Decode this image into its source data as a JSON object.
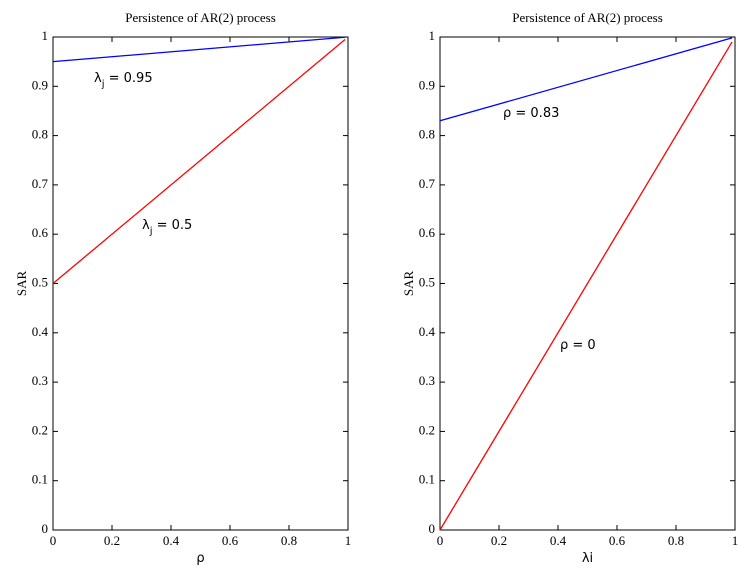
{
  "chart_data": [
    {
      "type": "line",
      "title": "Persistence of AR(2) process",
      "xlabel": [
        "ρ"
      ],
      "ylabel": "SAR",
      "x": [
        0,
        0.99
      ],
      "series": [
        {
          "color": "#0000ff",
          "values": [
            0.95,
            0.9995
          ]
        },
        {
          "color": "#ff0000",
          "values": [
            0.5,
            0.995
          ]
        }
      ],
      "xlim": [
        0,
        1
      ],
      "ylim": [
        0,
        1
      ],
      "xticks": [
        0,
        0.2,
        0.4,
        0.6,
        0.8,
        1
      ],
      "yticks": [
        0,
        0.1,
        0.2,
        0.3,
        0.4,
        0.5,
        0.6,
        0.7,
        0.8,
        0.9,
        1
      ],
      "annotations": [
        [
          "λ",
          "j",
          " = 0.95"
        ],
        [
          "λ",
          "j",
          " = 0.5"
        ]
      ]
    },
    {
      "type": "line",
      "title": "Persistence of AR(2) process",
      "xlabel": [
        "λ",
        "i"
      ],
      "ylabel": "SAR",
      "x": [
        0,
        0.99
      ],
      "series": [
        {
          "color": "#0000ff",
          "values": [
            0.83,
            0.9983
          ]
        },
        {
          "color": "#ff0000",
          "values": [
            0,
            0.99
          ]
        }
      ],
      "xlim": [
        0,
        1
      ],
      "ylim": [
        0,
        1
      ],
      "xticks": [
        0,
        0.2,
        0.4,
        0.6,
        0.8,
        1
      ],
      "yticks": [
        0,
        0.1,
        0.2,
        0.3,
        0.4,
        0.5,
        0.6,
        0.7,
        0.8,
        0.9,
        1
      ],
      "annotations": [
        [
          "ρ = 0.83"
        ],
        [
          "ρ = 0"
        ]
      ]
    }
  ]
}
